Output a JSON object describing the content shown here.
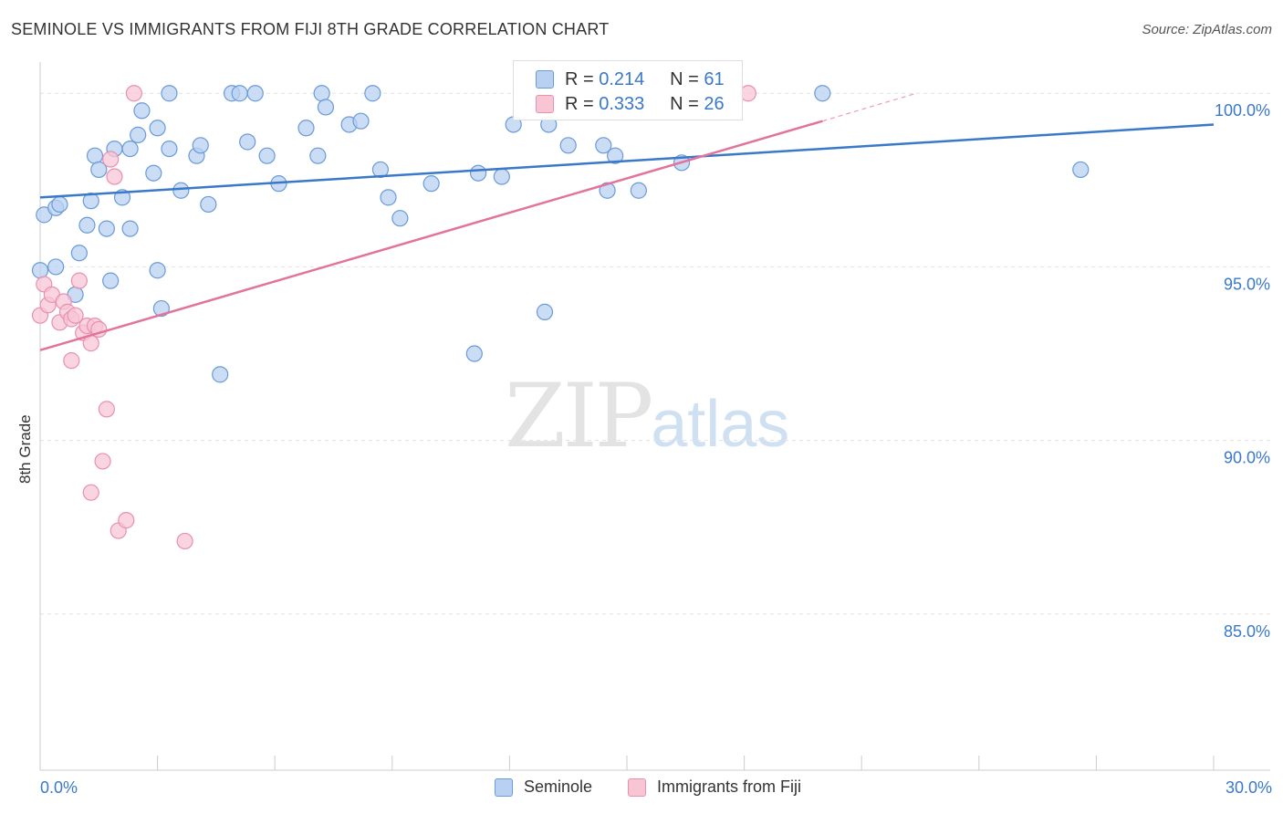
{
  "title": "SEMINOLE VS IMMIGRANTS FROM FIJI 8TH GRADE CORRELATION CHART",
  "source": "Source: ZipAtlas.com",
  "watermark": {
    "zip": "ZIP",
    "atlas": "atlas"
  },
  "legend": {
    "r_label": "R =",
    "n_label": "N =",
    "series": [
      {
        "name": "Seminole",
        "r": "0.214",
        "n": "61",
        "fill": "#b8d1f2",
        "stroke": "#6a9ad8"
      },
      {
        "name": "Immigrants from Fiji",
        "r": "0.333",
        "n": "26",
        "fill": "#f8c5d5",
        "stroke": "#e890ae"
      }
    ]
  },
  "chart_data": {
    "type": "scatter",
    "title": "SEMINOLE VS IMMIGRANTS FROM FIJI 8TH GRADE CORRELATION CHART",
    "xlabel": "",
    "ylabel": "8th Grade",
    "xlim": [
      0,
      30
    ],
    "ylim": [
      80.5,
      100.9
    ],
    "x_tick_labels": [
      "0.0%",
      "30.0%"
    ],
    "y_ticks": [
      85,
      90,
      95,
      100
    ],
    "y_tick_labels": [
      "85.0%",
      "90.0%",
      "95.0%",
      "100.0%"
    ],
    "grid": true,
    "legend_position": "top-center",
    "series": [
      {
        "name": "Seminole",
        "color": "#3a78c9",
        "trend": {
          "x0": 0,
          "y0": 97.0,
          "x1": 30,
          "y1": 99.1
        },
        "points": [
          [
            0.0,
            94.9
          ],
          [
            0.1,
            96.5
          ],
          [
            0.4,
            96.7
          ],
          [
            0.5,
            96.8
          ],
          [
            0.4,
            95.0
          ],
          [
            0.9,
            94.2
          ],
          [
            1.0,
            95.4
          ],
          [
            1.2,
            96.2
          ],
          [
            1.3,
            96.9
          ],
          [
            1.4,
            98.2
          ],
          [
            1.5,
            97.8
          ],
          [
            1.7,
            96.1
          ],
          [
            1.8,
            94.6
          ],
          [
            1.9,
            98.4
          ],
          [
            2.1,
            97.0
          ],
          [
            2.3,
            96.1
          ],
          [
            2.3,
            98.4
          ],
          [
            2.5,
            98.8
          ],
          [
            2.6,
            99.5
          ],
          [
            2.9,
            97.7
          ],
          [
            3.0,
            94.9
          ],
          [
            3.0,
            99.0
          ],
          [
            3.1,
            93.8
          ],
          [
            3.3,
            98.4
          ],
          [
            3.3,
            100.0
          ],
          [
            3.6,
            97.2
          ],
          [
            4.0,
            98.2
          ],
          [
            4.1,
            98.5
          ],
          [
            4.3,
            96.8
          ],
          [
            4.6,
            91.9
          ],
          [
            4.9,
            100.0
          ],
          [
            5.1,
            100.0
          ],
          [
            5.3,
            98.6
          ],
          [
            5.5,
            100.0
          ],
          [
            5.8,
            98.2
          ],
          [
            6.1,
            97.4
          ],
          [
            6.8,
            99.0
          ],
          [
            7.1,
            98.2
          ],
          [
            7.2,
            100.0
          ],
          [
            7.3,
            99.6
          ],
          [
            7.9,
            99.1
          ],
          [
            8.2,
            99.2
          ],
          [
            8.5,
            100.0
          ],
          [
            8.7,
            97.8
          ],
          [
            8.9,
            97.0
          ],
          [
            9.2,
            96.4
          ],
          [
            10.0,
            97.4
          ],
          [
            11.1,
            92.5
          ],
          [
            11.2,
            97.7
          ],
          [
            11.8,
            97.6
          ],
          [
            12.1,
            99.1
          ],
          [
            12.9,
            93.7
          ],
          [
            13.0,
            99.1
          ],
          [
            13.5,
            98.5
          ],
          [
            14.4,
            98.5
          ],
          [
            14.5,
            97.2
          ],
          [
            14.7,
            98.2
          ],
          [
            15.3,
            97.2
          ],
          [
            16.4,
            98.0
          ],
          [
            20.0,
            100.0
          ],
          [
            26.6,
            97.8
          ]
        ]
      },
      {
        "name": "Immigrants from Fiji",
        "color": "#e2739a",
        "trend": {
          "x0": 0,
          "y0": 92.6,
          "x1": 20.0,
          "y1": 99.2,
          "dash_to_x": 22.4,
          "dash_to_y": 100.0
        },
        "points": [
          [
            0.0,
            93.6
          ],
          [
            0.1,
            94.5
          ],
          [
            0.2,
            93.9
          ],
          [
            0.3,
            94.2
          ],
          [
            0.5,
            93.4
          ],
          [
            0.6,
            94.0
          ],
          [
            0.7,
            93.7
          ],
          [
            0.8,
            92.3
          ],
          [
            0.8,
            93.5
          ],
          [
            0.9,
            93.6
          ],
          [
            1.0,
            94.6
          ],
          [
            1.1,
            93.1
          ],
          [
            1.2,
            93.3
          ],
          [
            1.3,
            92.8
          ],
          [
            1.4,
            93.3
          ],
          [
            1.5,
            93.2
          ],
          [
            1.6,
            89.4
          ],
          [
            1.7,
            90.9
          ],
          [
            1.8,
            98.1
          ],
          [
            1.9,
            97.6
          ],
          [
            1.3,
            88.5
          ],
          [
            2.0,
            87.4
          ],
          [
            2.2,
            87.7
          ],
          [
            2.4,
            100.0
          ],
          [
            3.7,
            87.1
          ],
          [
            18.1,
            100.0
          ]
        ]
      }
    ]
  }
}
